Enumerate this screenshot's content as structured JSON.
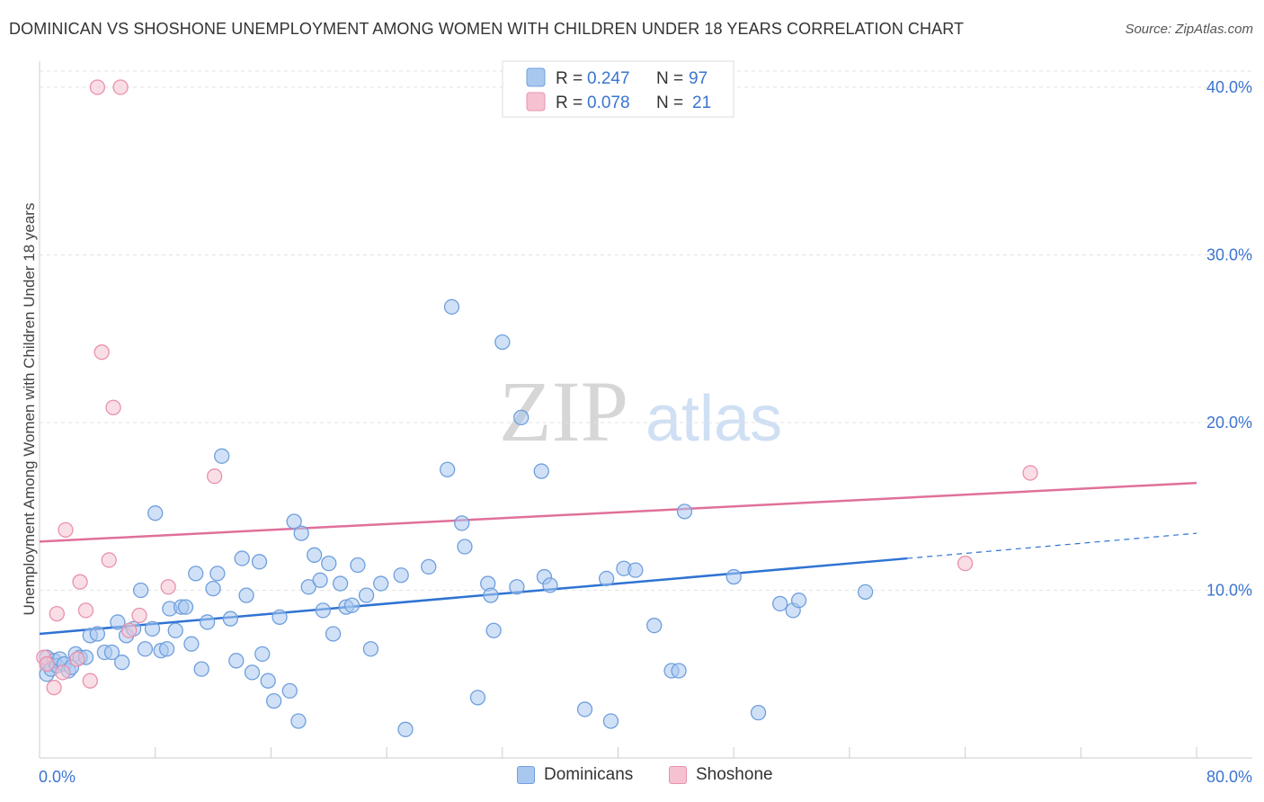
{
  "chart_data": {
    "type": "scatter",
    "title": "DOMINICAN VS SHOSHONE UNEMPLOYMENT AMONG WOMEN WITH CHILDREN UNDER 18 YEARS CORRELATION CHART",
    "source": "Source: ZipAtlas.com",
    "xlabel": "",
    "ylabel": "Unemployment Among Women with Children Under 18 years",
    "xlim": [
      0,
      80
    ],
    "ylim": [
      0,
      42
    ],
    "x_tick_labels": [
      "0.0%",
      "80.0%"
    ],
    "y_ticks": [
      10,
      20,
      30,
      40
    ],
    "y_tick_labels": [
      "10.0%",
      "20.0%",
      "30.0%",
      "40.0%"
    ],
    "watermark": {
      "zip": "ZIP",
      "atlas": "atlas"
    },
    "legend": {
      "rows": [
        {
          "r_label": "R = ",
          "r_value": "0.247",
          "n_label": "N = ",
          "n_value": "97"
        },
        {
          "r_label": "R = ",
          "r_value": "0.078",
          "n_label": "N = ",
          "n_value": "21"
        }
      ]
    },
    "series": [
      {
        "name": "Dominicans",
        "fill": "#a9c8f0",
        "stroke": "#6f9fdc",
        "line_color": "#2f73d3",
        "trend": {
          "x0": 0,
          "y0": 7.4,
          "x1": 60,
          "y1": 11.9,
          "dash_to_x": 80,
          "dash_to_y": 13.4
        },
        "points": [
          [
            0.5,
            5.0
          ],
          [
            0.5,
            6.0
          ],
          [
            0.6,
            5.6
          ],
          [
            0.8,
            5.3
          ],
          [
            1.0,
            5.8
          ],
          [
            1.2,
            5.5
          ],
          [
            1.4,
            5.9
          ],
          [
            1.7,
            5.6
          ],
          [
            2.0,
            5.2
          ],
          [
            2.2,
            5.4
          ],
          [
            2.5,
            6.2
          ],
          [
            2.8,
            6.0
          ],
          [
            3.2,
            6.0
          ],
          [
            3.5,
            7.3
          ],
          [
            4.0,
            7.4
          ],
          [
            4.5,
            6.3
          ],
          [
            5.0,
            6.3
          ],
          [
            5.4,
            8.1
          ],
          [
            5.7,
            5.7
          ],
          [
            6.0,
            7.3
          ],
          [
            6.5,
            7.7
          ],
          [
            7.0,
            10.0
          ],
          [
            7.3,
            6.5
          ],
          [
            7.8,
            7.7
          ],
          [
            8.0,
            14.6
          ],
          [
            8.4,
            6.4
          ],
          [
            8.8,
            6.5
          ],
          [
            9.0,
            8.9
          ],
          [
            9.4,
            7.6
          ],
          [
            9.8,
            9.0
          ],
          [
            10.1,
            9.0
          ],
          [
            10.5,
            6.8
          ],
          [
            10.8,
            11.0
          ],
          [
            11.2,
            5.3
          ],
          [
            11.6,
            8.1
          ],
          [
            12.0,
            10.1
          ],
          [
            12.3,
            11.0
          ],
          [
            12.6,
            18.0
          ],
          [
            13.2,
            8.3
          ],
          [
            13.6,
            5.8
          ],
          [
            14.0,
            11.9
          ],
          [
            14.3,
            9.7
          ],
          [
            14.7,
            5.1
          ],
          [
            15.2,
            11.7
          ],
          [
            15.4,
            6.2
          ],
          [
            15.8,
            4.6
          ],
          [
            16.2,
            3.4
          ],
          [
            16.6,
            8.4
          ],
          [
            17.3,
            4.0
          ],
          [
            17.6,
            14.1
          ],
          [
            17.9,
            2.2
          ],
          [
            18.1,
            13.4
          ],
          [
            18.6,
            10.2
          ],
          [
            19.0,
            12.1
          ],
          [
            19.4,
            10.6
          ],
          [
            19.6,
            8.8
          ],
          [
            20.0,
            11.6
          ],
          [
            20.3,
            7.4
          ],
          [
            20.8,
            10.4
          ],
          [
            21.2,
            9.0
          ],
          [
            21.6,
            9.1
          ],
          [
            22.0,
            11.5
          ],
          [
            22.6,
            9.7
          ],
          [
            22.9,
            6.5
          ],
          [
            23.6,
            10.4
          ],
          [
            25.0,
            10.9
          ],
          [
            25.3,
            1.7
          ],
          [
            26.9,
            11.4
          ],
          [
            28.2,
            17.2
          ],
          [
            28.5,
            26.9
          ],
          [
            29.2,
            14.0
          ],
          [
            29.4,
            12.6
          ],
          [
            30.3,
            3.6
          ],
          [
            31.0,
            10.4
          ],
          [
            31.2,
            9.7
          ],
          [
            31.4,
            7.6
          ],
          [
            32.0,
            24.8
          ],
          [
            33.0,
            10.2
          ],
          [
            33.3,
            20.3
          ],
          [
            34.7,
            17.1
          ],
          [
            34.9,
            10.8
          ],
          [
            35.3,
            10.3
          ],
          [
            37.7,
            2.9
          ],
          [
            39.2,
            10.7
          ],
          [
            39.5,
            2.2
          ],
          [
            40.4,
            11.3
          ],
          [
            41.2,
            11.2
          ],
          [
            42.5,
            7.9
          ],
          [
            43.7,
            5.2
          ],
          [
            44.2,
            5.2
          ],
          [
            44.6,
            14.7
          ],
          [
            48.0,
            10.8
          ],
          [
            49.7,
            2.7
          ],
          [
            51.2,
            9.2
          ],
          [
            52.1,
            8.8
          ],
          [
            52.5,
            9.4
          ],
          [
            57.1,
            9.9
          ]
        ]
      },
      {
        "name": "Shoshone",
        "fill": "#f6c2d2",
        "stroke": "#e891ad",
        "line_color": "#e0709a",
        "trend": {
          "x0": 0,
          "y0": 12.9,
          "x1": 80,
          "y1": 16.4
        },
        "points": [
          [
            0.3,
            6.0
          ],
          [
            0.5,
            5.6
          ],
          [
            1.0,
            4.2
          ],
          [
            1.2,
            8.6
          ],
          [
            1.6,
            5.1
          ],
          [
            1.8,
            13.6
          ],
          [
            2.6,
            5.9
          ],
          [
            2.8,
            10.5
          ],
          [
            3.2,
            8.8
          ],
          [
            3.5,
            4.6
          ],
          [
            4.0,
            40.0
          ],
          [
            4.3,
            24.2
          ],
          [
            4.8,
            11.8
          ],
          [
            5.1,
            20.9
          ],
          [
            5.6,
            40.0
          ],
          [
            6.2,
            7.6
          ],
          [
            6.9,
            8.5
          ],
          [
            8.9,
            10.2
          ],
          [
            12.1,
            16.8
          ],
          [
            68.5,
            17.0
          ],
          [
            64.0,
            11.6
          ]
        ]
      }
    ]
  }
}
